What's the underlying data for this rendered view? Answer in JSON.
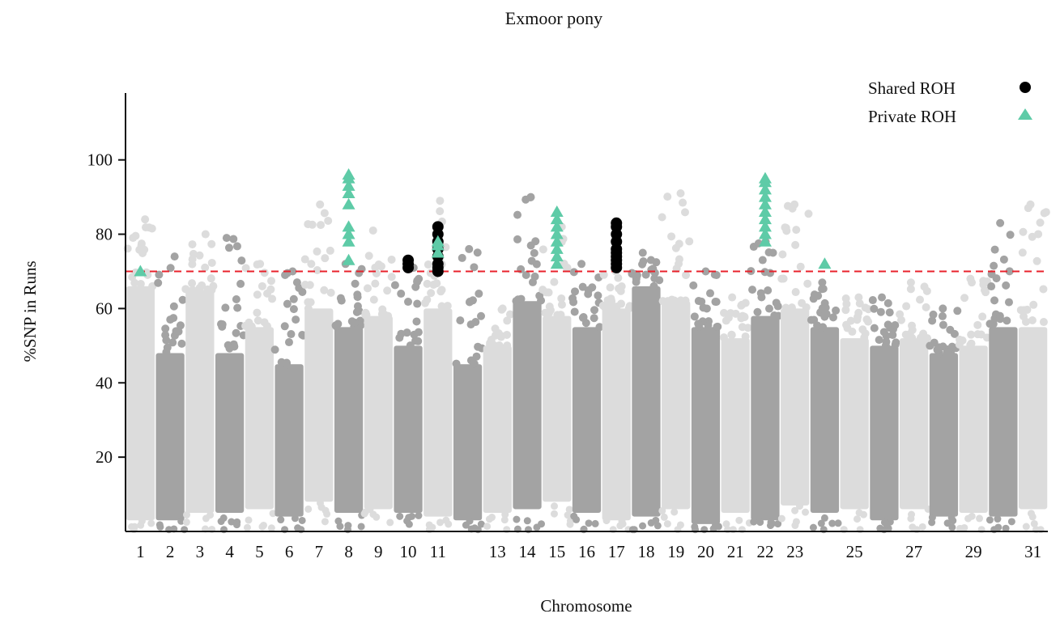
{
  "chart_data": {
    "type": "scatter",
    "title": "Exmoor pony",
    "xlabel": "Chromosome",
    "ylabel": "%SNP in Runs",
    "ylim": [
      0,
      118
    ],
    "yticks": [
      20,
      40,
      60,
      80,
      100
    ],
    "threshold": {
      "y": 70,
      "style": "dashed",
      "color": "#e8222b"
    },
    "legend": {
      "position": "top-right",
      "entries": [
        {
          "label": "Shared ROH",
          "marker": "circle",
          "color": "#000000"
        },
        {
          "label": "Private ROH",
          "marker": "triangle",
          "color": "#5ecba7"
        }
      ]
    },
    "colors": {
      "light": "#dcdcdc",
      "dark": "#a3a3a3",
      "shared": "#000000",
      "private": "#5ecba7",
      "axis": "#111111"
    },
    "chromosomes": [
      {
        "chr": "1",
        "label": "1",
        "low": 3,
        "high": 66,
        "peak": 84,
        "shade": "light"
      },
      {
        "chr": "2",
        "label": "2",
        "low": 3,
        "high": 48,
        "peak": 74,
        "shade": "dark"
      },
      {
        "chr": "3",
        "label": "3",
        "low": 5,
        "high": 65,
        "peak": 80,
        "shade": "light"
      },
      {
        "chr": "4",
        "label": "4",
        "low": 5,
        "high": 48,
        "peak": 79,
        "shade": "dark"
      },
      {
        "chr": "5",
        "label": "5",
        "low": 6,
        "high": 55,
        "peak": 72,
        "shade": "light"
      },
      {
        "chr": "6",
        "label": "6",
        "low": 4,
        "high": 45,
        "peak": 70,
        "shade": "dark"
      },
      {
        "chr": "7",
        "label": "7",
        "low": 8,
        "high": 60,
        "peak": 88,
        "shade": "light"
      },
      {
        "chr": "8",
        "label": "8",
        "low": 5,
        "high": 55,
        "peak": 72,
        "shade": "dark"
      },
      {
        "chr": "9",
        "label": "9",
        "low": 6,
        "high": 58,
        "peak": 81,
        "shade": "light"
      },
      {
        "chr": "10",
        "label": "10",
        "low": 5,
        "high": 50,
        "peak": 72,
        "shade": "dark"
      },
      {
        "chr": "11",
        "label": "11",
        "low": 4,
        "high": 60,
        "peak": 89,
        "shade": "light"
      },
      {
        "chr": "12",
        "label": "",
        "low": 3,
        "high": 45,
        "peak": 76,
        "shade": "dark"
      },
      {
        "chr": "13",
        "label": "13",
        "low": 5,
        "high": 50,
        "peak": 60,
        "shade": "light"
      },
      {
        "chr": "14",
        "label": "14",
        "low": 6,
        "high": 62,
        "peak": 90,
        "shade": "dark"
      },
      {
        "chr": "15",
        "label": "15",
        "low": 8,
        "high": 58,
        "peak": 82,
        "shade": "light"
      },
      {
        "chr": "16",
        "label": "16",
        "low": 5,
        "high": 55,
        "peak": 72,
        "shade": "dark"
      },
      {
        "chr": "17",
        "label": "17",
        "low": 3,
        "high": 60,
        "peak": 70,
        "shade": "light"
      },
      {
        "chr": "18",
        "label": "18",
        "low": 4,
        "high": 66,
        "peak": 75,
        "shade": "dark"
      },
      {
        "chr": "19",
        "label": "19",
        "low": 6,
        "high": 62,
        "peak": 91,
        "shade": "light"
      },
      {
        "chr": "20",
        "label": "20",
        "low": 2,
        "high": 55,
        "peak": 70,
        "shade": "dark"
      },
      {
        "chr": "21",
        "label": "21",
        "low": 5,
        "high": 52,
        "peak": 63,
        "shade": "light"
      },
      {
        "chr": "22",
        "label": "22",
        "low": 3,
        "high": 58,
        "peak": 78,
        "shade": "dark"
      },
      {
        "chr": "23",
        "label": "23",
        "low": 7,
        "high": 60,
        "peak": 88,
        "shade": "light"
      },
      {
        "chr": "24",
        "label": "",
        "low": 5,
        "high": 55,
        "peak": 67,
        "shade": "dark"
      },
      {
        "chr": "25",
        "label": "25",
        "low": 6,
        "high": 52,
        "peak": 63,
        "shade": "light"
      },
      {
        "chr": "26",
        "label": "",
        "low": 3,
        "high": 50,
        "peak": 63,
        "shade": "dark"
      },
      {
        "chr": "27",
        "label": "27",
        "low": 6,
        "high": 52,
        "peak": 67,
        "shade": "light"
      },
      {
        "chr": "28",
        "label": "",
        "low": 4,
        "high": 48,
        "peak": 60,
        "shade": "dark"
      },
      {
        "chr": "29",
        "label": "29",
        "low": 5,
        "high": 50,
        "peak": 68,
        "shade": "light"
      },
      {
        "chr": "30",
        "label": "",
        "low": 4,
        "high": 55,
        "peak": 83,
        "shade": "dark"
      },
      {
        "chr": "31",
        "label": "31",
        "low": 6,
        "high": 55,
        "peak": 88,
        "shade": "light"
      }
    ],
    "shared_roh": [
      {
        "chr": "10",
        "values": [
          71,
          72,
          73
        ]
      },
      {
        "chr": "11",
        "values": [
          70,
          71,
          72,
          74,
          76,
          78,
          80,
          82
        ]
      },
      {
        "chr": "17",
        "values": [
          71,
          72,
          73,
          74,
          75,
          76,
          78,
          80,
          82,
          83
        ]
      }
    ],
    "private_roh": [
      {
        "chr": "1",
        "values": [
          70
        ]
      },
      {
        "chr": "8",
        "values": [
          73,
          78,
          80,
          82,
          88,
          91,
          93,
          95,
          96
        ]
      },
      {
        "chr": "11",
        "values": [
          75,
          77,
          78
        ]
      },
      {
        "chr": "15",
        "values": [
          72,
          74,
          76,
          78,
          80,
          82,
          84,
          86
        ]
      },
      {
        "chr": "22",
        "values": [
          78,
          80,
          82,
          84,
          86,
          88,
          90,
          92,
          94,
          95
        ]
      },
      {
        "chr": "24",
        "values": [
          72
        ]
      }
    ]
  }
}
